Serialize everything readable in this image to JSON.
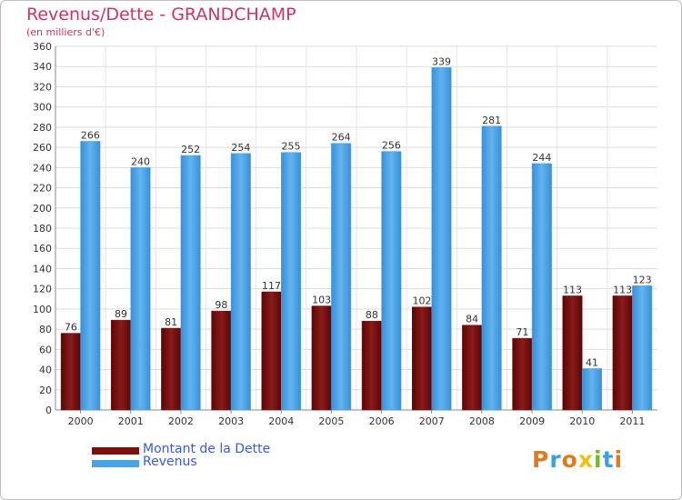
{
  "title": "Revenus/Dette - GRANDCHAMP",
  "subtitle": "(en milliers d'€)",
  "brand": {
    "text": "Proxiti",
    "colors": [
      "#e07a1f",
      "#3aa0de",
      "#e07a1f",
      "#e8c312",
      "#6fbb2a",
      "#3aa0de",
      "#e07a1f"
    ]
  },
  "colors": {
    "debt": "#7a1010",
    "revenue": "#4aa3e6",
    "title": "#cc3366",
    "legend_text": "#3b5bd8"
  },
  "chart_data": {
    "type": "bar",
    "title": "Revenus/Dette - GRANDCHAMP",
    "subtitle": "(en milliers d'€)",
    "categories": [
      "2000",
      "2001",
      "2002",
      "2003",
      "2004",
      "2005",
      "2006",
      "2007",
      "2008",
      "2009",
      "2010",
      "2011"
    ],
    "series": [
      {
        "name": "Montant de la Dette",
        "values": [
          76,
          89,
          81,
          98,
          117,
          103,
          88,
          102,
          84,
          71,
          113,
          113
        ]
      },
      {
        "name": "Revenus",
        "values": [
          266,
          240,
          252,
          254,
          255,
          264,
          256,
          339,
          281,
          244,
          41,
          123
        ]
      }
    ],
    "ylim": [
      0,
      360
    ],
    "yticks": [
      0,
      20,
      40,
      60,
      80,
      100,
      120,
      140,
      160,
      180,
      200,
      220,
      240,
      260,
      280,
      300,
      320,
      340,
      360
    ],
    "grid": true,
    "legend": "bottom-left",
    "data_labels": true
  }
}
